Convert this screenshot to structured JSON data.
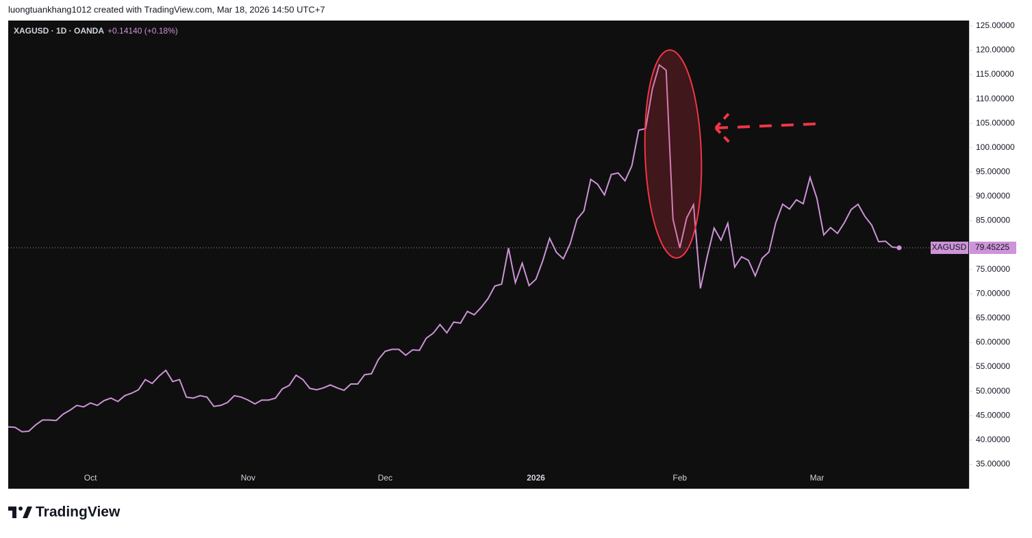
{
  "chart_data": {
    "type": "line",
    "header": "luongtuankhang1012 created with TradingView.com, Mar 18, 2026 14:50 UTC+7",
    "title": "XAGUSD · 1D · OANDA",
    "subtitle": "+0.14140 (+0.18%)",
    "brand": "TradingView",
    "categories": [
      null,
      null,
      null,
      null,
      null,
      null,
      null,
      null,
      null,
      null,
      null,
      null,
      "Oct",
      null,
      null,
      null,
      null,
      null,
      null,
      null,
      null,
      null,
      null,
      null,
      null,
      null,
      null,
      null,
      null,
      null,
      null,
      null,
      null,
      null,
      null,
      "Nov",
      null,
      null,
      null,
      null,
      null,
      null,
      null,
      null,
      null,
      null,
      null,
      null,
      null,
      null,
      null,
      null,
      null,
      null,
      null,
      "Dec",
      null,
      null,
      null,
      null,
      null,
      null,
      null,
      null,
      null,
      null,
      null,
      null,
      null,
      null,
      null,
      null,
      null,
      null,
      null,
      null,
      null,
      "2026",
      null,
      null,
      null,
      null,
      null,
      null,
      null,
      null,
      null,
      null,
      null,
      null,
      null,
      null,
      null,
      null,
      null,
      null,
      null,
      null,
      "Feb",
      null,
      null,
      null,
      null,
      null,
      null,
      null,
      null,
      null,
      null,
      null,
      null,
      null,
      null,
      null,
      null,
      null,
      null,
      null,
      "Mar",
      null,
      null,
      null,
      null,
      null,
      null,
      null,
      null,
      null,
      null,
      null,
      null
    ],
    "series": [
      {
        "name": "XAGUSD",
        "color": "#ce93d8",
        "values": [
          42.7,
          42.6,
          41.7,
          41.8,
          43.1,
          44.1,
          44.1,
          44.0,
          45.3,
          46.1,
          47.1,
          46.8,
          47.6,
          47.1,
          48.1,
          48.6,
          47.9,
          49.1,
          49.6,
          50.3,
          52.4,
          51.6,
          53.1,
          54.3,
          52.0,
          52.4,
          48.8,
          48.6,
          49.1,
          48.8,
          46.9,
          47.1,
          47.7,
          49.1,
          48.8,
          48.2,
          47.4,
          48.2,
          48.2,
          48.6,
          50.5,
          51.2,
          53.3,
          52.4,
          50.6,
          50.3,
          50.7,
          51.3,
          50.7,
          50.2,
          51.5,
          51.5,
          53.4,
          53.6,
          56.5,
          58.2,
          58.6,
          58.6,
          57.4,
          58.5,
          58.4,
          60.9,
          61.9,
          63.7,
          62.0,
          64.2,
          64.0,
          66.4,
          65.7,
          67.2,
          69.0,
          71.6,
          72.0,
          79.4,
          72.3,
          76.3,
          71.7,
          73.0,
          76.8,
          81.4,
          78.5,
          77.2,
          80.3,
          85.3,
          87.0,
          93.5,
          92.5,
          90.3,
          94.5,
          94.8,
          93.2,
          96.3,
          103.6,
          103.9,
          112.1,
          117.0,
          115.9,
          85.3,
          79.4,
          85.6,
          88.3,
          71.1,
          77.7,
          83.5,
          81.0,
          84.5,
          75.5,
          77.6,
          76.9,
          73.7,
          77.3,
          78.6,
          84.6,
          88.4,
          87.4,
          89.3,
          88.5,
          93.9,
          89.6,
          82.1,
          83.6,
          82.4,
          84.6,
          87.3,
          88.4,
          85.9,
          84.1,
          80.7,
          80.8,
          79.6,
          79.45225
        ]
      }
    ],
    "ylim": [
      30,
      126.1
    ],
    "yticks": [
      {
        "value": 35,
        "label": "35.00000"
      },
      {
        "value": 40,
        "label": "40.00000"
      },
      {
        "value": 45,
        "label": "45.00000"
      },
      {
        "value": 50,
        "label": "50.00000"
      },
      {
        "value": 55,
        "label": "55.00000"
      },
      {
        "value": 60,
        "label": "60.00000"
      },
      {
        "value": 65,
        "label": "65.00000"
      },
      {
        "value": 70,
        "label": "70.00000"
      },
      {
        "value": 75,
        "label": "75.00000"
      },
      {
        "value": 80,
        "label": "80.00000"
      },
      {
        "value": 85,
        "label": "85.00000"
      },
      {
        "value": 90,
        "label": "90.00000"
      },
      {
        "value": 95,
        "label": "95.00000"
      },
      {
        "value": 100,
        "label": "100.00000"
      },
      {
        "value": 105,
        "label": "105.00000"
      },
      {
        "value": 110,
        "label": "110.00000"
      },
      {
        "value": 115,
        "label": "115.00000"
      },
      {
        "value": 120,
        "label": "120.00000"
      },
      {
        "value": 125,
        "label": "125.00000"
      }
    ]
  }
}
